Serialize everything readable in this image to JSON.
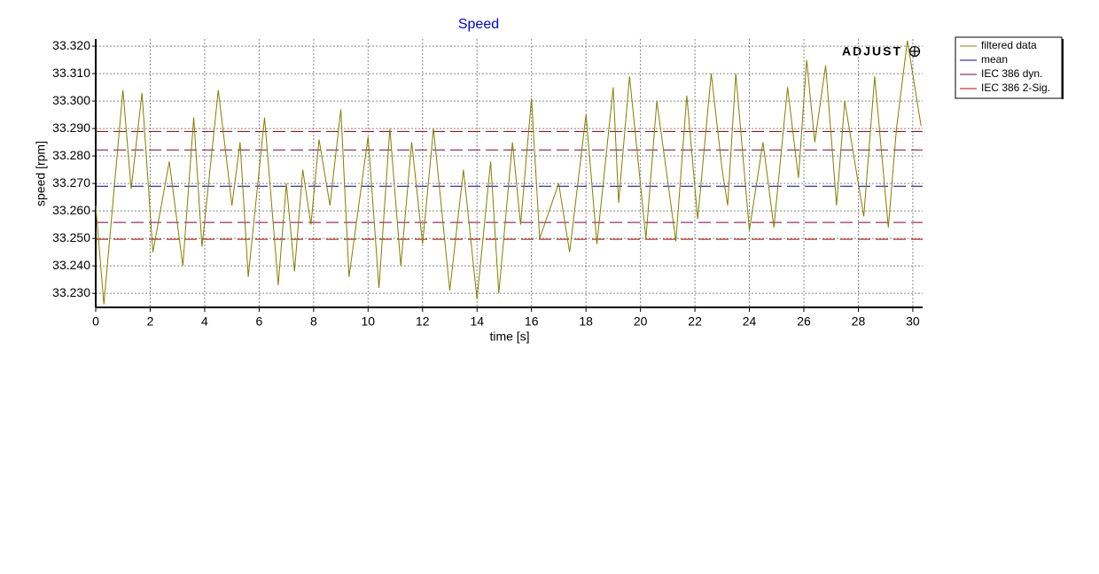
{
  "chart_data": {
    "type": "line",
    "title": "Speed",
    "logo": "ADJUST",
    "xlabel": "time [s]",
    "ylabel": "speed [rpm]",
    "xlim": [
      0,
      30.36
    ],
    "ylim": [
      33.2249,
      33.3226
    ],
    "xticks": [
      0,
      2,
      4,
      6,
      8,
      10,
      12,
      14,
      16,
      18,
      20,
      22,
      24,
      26,
      28,
      30
    ],
    "yticks": [
      {
        "value": 33.23,
        "label": "33.230"
      },
      {
        "value": 33.24,
        "label": "33.240"
      },
      {
        "value": 33.25,
        "label": "33.250"
      },
      {
        "value": 33.26,
        "label": "33.260"
      },
      {
        "value": 33.27,
        "label": "33.270"
      },
      {
        "value": 33.28,
        "label": "33.280"
      },
      {
        "value": 33.29,
        "label": "33.290"
      },
      {
        "value": 33.3,
        "label": "33.300"
      },
      {
        "value": 33.31,
        "label": "33.310"
      },
      {
        "value": 33.32,
        "label": "33.320"
      }
    ],
    "grid": true,
    "series": [
      {
        "name": "filtered data",
        "color": "#808000",
        "x": [
          0,
          0.3,
          1.0,
          1.3,
          1.7,
          2.1,
          2.7,
          3.2,
          3.6,
          3.9,
          4.5,
          5.0,
          5.3,
          5.6,
          6.2,
          6.7,
          7.0,
          7.3,
          7.6,
          7.9,
          8.2,
          8.6,
          9.0,
          9.3,
          10.0,
          10.4,
          10.8,
          11.2,
          11.6,
          12.0,
          12.4,
          13.0,
          13.5,
          14.0,
          14.5,
          14.8,
          15.3,
          15.6,
          16.0,
          16.3,
          17.0,
          17.4,
          18.0,
          18.4,
          19.0,
          19.2,
          19.6,
          20.2,
          20.6,
          21.3,
          21.7,
          22.1,
          22.6,
          23.0,
          23.2,
          23.5,
          24.0,
          24.5,
          24.9,
          25.4,
          25.8,
          26.1,
          26.4,
          26.8,
          27.2,
          27.5,
          28.2,
          28.6,
          29.1,
          29.4,
          29.8,
          30.3
        ],
        "values": [
          33.262,
          33.226,
          33.304,
          33.268,
          33.303,
          33.245,
          33.278,
          33.24,
          33.294,
          33.247,
          33.304,
          33.262,
          33.285,
          33.236,
          33.294,
          33.233,
          33.27,
          33.238,
          33.275,
          33.255,
          33.286,
          33.262,
          33.297,
          33.236,
          33.287,
          33.232,
          33.29,
          33.24,
          33.285,
          33.248,
          33.29,
          33.231,
          33.275,
          33.228,
          33.278,
          33.23,
          33.285,
          33.255,
          33.301,
          33.25,
          33.27,
          33.245,
          33.295,
          33.248,
          33.305,
          33.263,
          33.309,
          33.25,
          33.3,
          33.249,
          33.302,
          33.257,
          33.31,
          33.275,
          33.262,
          33.31,
          33.253,
          33.285,
          33.254,
          33.305,
          33.272,
          33.315,
          33.285,
          33.313,
          33.262,
          33.3,
          33.258,
          33.309,
          33.254,
          33.29,
          33.322,
          33.291
        ]
      }
    ],
    "reference_lines": [
      {
        "name": "mean",
        "color": "#0000a0",
        "values": [
          33.269
        ]
      },
      {
        "name": "IEC 386 dyn.",
        "color": "#800040",
        "values": [
          33.2822,
          33.2558
        ]
      },
      {
        "name": "IEC 386 2-Sig.",
        "color": "#c00000",
        "values": [
          33.2889,
          33.2497
        ]
      }
    ]
  }
}
